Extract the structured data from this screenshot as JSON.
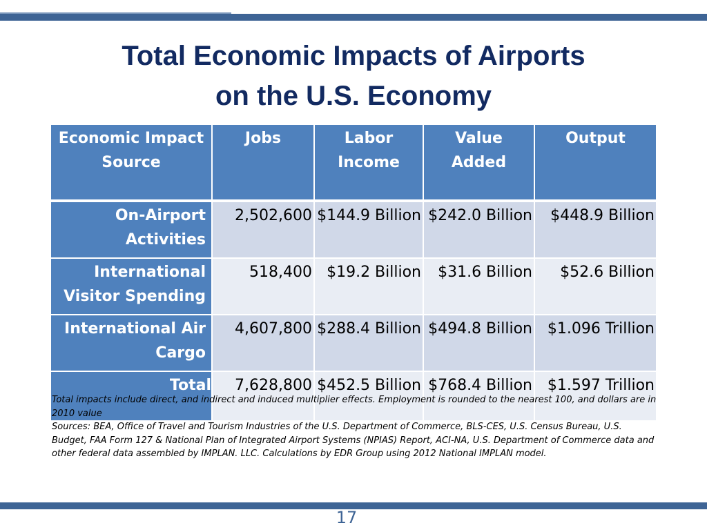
{
  "slide": {
    "title_line1": "Total Economic Impacts of Airports",
    "title_line2": "on the U.S. Economy",
    "page_number": "17",
    "colors": {
      "title": "#122a61",
      "header_fill": "#4f81bd",
      "row_fill_odd": "#d0d8e8",
      "row_fill_even": "#e9edf4",
      "bar": "#3e6495"
    }
  },
  "table": {
    "headers": [
      "Economic Impact Source",
      "Jobs",
      "Labor Income",
      "Value Added",
      "Output"
    ],
    "rows": [
      {
        "source": "On-Airport Activities",
        "jobs": "2,502,600",
        "labor_income": "$144.9 Billion",
        "value_added": "$242.0 Billion",
        "output": "$448.9 Billion"
      },
      {
        "source": "International Visitor Spending",
        "jobs": "518,400",
        "labor_income": "$19.2 Billion",
        "value_added": "$31.6 Billion",
        "output": "$52.6 Billion"
      },
      {
        "source": "International Air Cargo",
        "jobs": "4,607,800",
        "labor_income": "$288.4 Billion",
        "value_added": "$494.8 Billion",
        "output": "$1.096 Trillion"
      },
      {
        "source": "Total",
        "jobs": "7,628,800",
        "labor_income": "$452.5 Billion",
        "value_added": "$768.4 Billion",
        "output": "$1.597 Trillion"
      }
    ]
  },
  "notes": {
    "footnote": "Total impacts include direct, and indirect and induced multiplier effects. Employment is rounded to the nearest 100, and dollars are in 2010 value",
    "sources": "Sources:  BEA, Office of Travel and Tourism Industries of the U.S. Department of Commerce, BLS-CES, U.S. Census Bureau, U.S. Budget, FAA Form 127 & National Plan of Integrated Airport Systems (NPIAS) Report, ACI-NA, U.S. Department of Commerce data and other federal data assembled by IMPLAN. LLC. Calculations by EDR Group using 2012 National IMPLAN model."
  }
}
